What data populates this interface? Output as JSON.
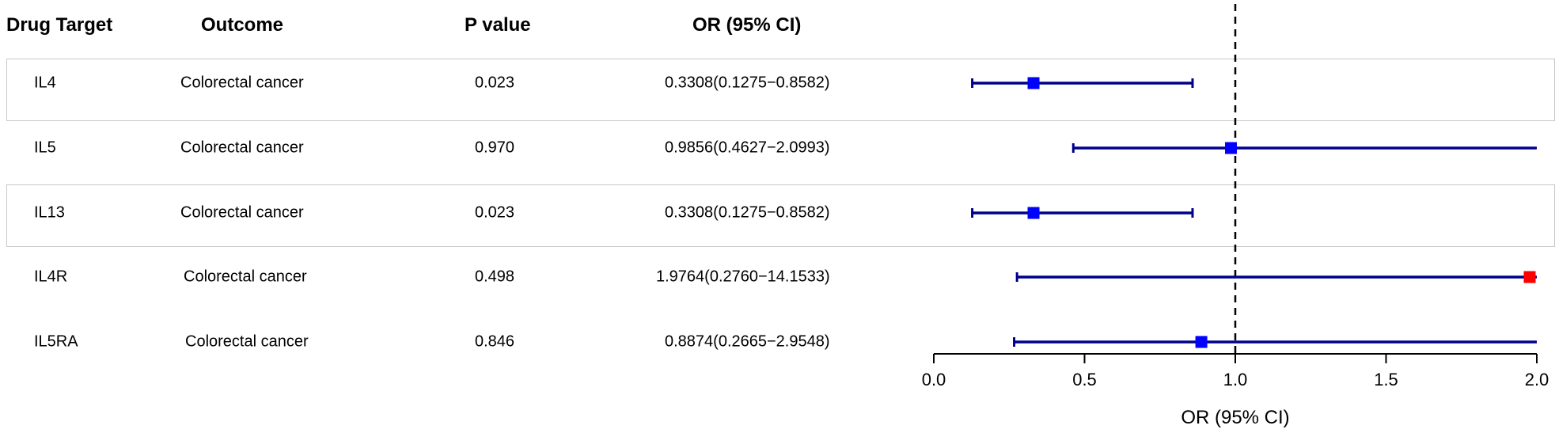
{
  "headers": {
    "drug_target": "Drug Target",
    "outcome": "Outcome",
    "p_value": "P value",
    "or_ci": "OR (95% CI)"
  },
  "rows": [
    {
      "target": "IL4",
      "outcome": "Colorectal cancer",
      "p": "0.023",
      "or_text": "0.3308(0.1275−0.8582)"
    },
    {
      "target": "IL5",
      "outcome": "Colorectal cancer",
      "p": "0.970",
      "or_text": "0.9856(0.4627−2.0993)"
    },
    {
      "target": "IL13",
      "outcome": "Colorectal cancer",
      "p": "0.023",
      "or_text": "0.3308(0.1275−0.8582)"
    },
    {
      "target": "IL4R",
      "outcome": "Colorectal cancer",
      "p": "0.498",
      "or_text": "1.9764(0.2760−14.1533)"
    },
    {
      "target": "IL5RA",
      "outcome": "Colorectal cancer",
      "p": "0.846",
      "or_text": "0.8874(0.2665−2.9548)"
    }
  ],
  "chart_data": {
    "type": "forest",
    "xlabel": "OR (95% CI)",
    "xlim": [
      0.0,
      2.0
    ],
    "xticks": [
      0.0,
      0.5,
      1.0,
      1.5,
      2.0
    ],
    "xtick_labels": [
      "0.0",
      "0.5",
      "1.0",
      "1.5",
      "2.0"
    ],
    "reference_line": 1.0,
    "categories": [
      "IL4",
      "IL5",
      "IL13",
      "IL4R",
      "IL5RA"
    ],
    "points": [
      {
        "label": "IL4",
        "or": 0.3308,
        "lower": 0.1275,
        "upper": 0.8582,
        "color": "#0000ff"
      },
      {
        "label": "IL5",
        "or": 0.9856,
        "lower": 0.4627,
        "upper": 2.0993,
        "color": "#0000ff"
      },
      {
        "label": "IL13",
        "or": 0.3308,
        "lower": 0.1275,
        "upper": 0.8582,
        "color": "#0000ff"
      },
      {
        "label": "IL4R",
        "or": 1.9764,
        "lower": 0.276,
        "upper": 14.1533,
        "color": "#ff0000"
      },
      {
        "label": "IL5RA",
        "or": 0.8874,
        "lower": 0.2665,
        "upper": 2.9548,
        "color": "#0000ff"
      }
    ],
    "ci_color": "#00008b"
  }
}
